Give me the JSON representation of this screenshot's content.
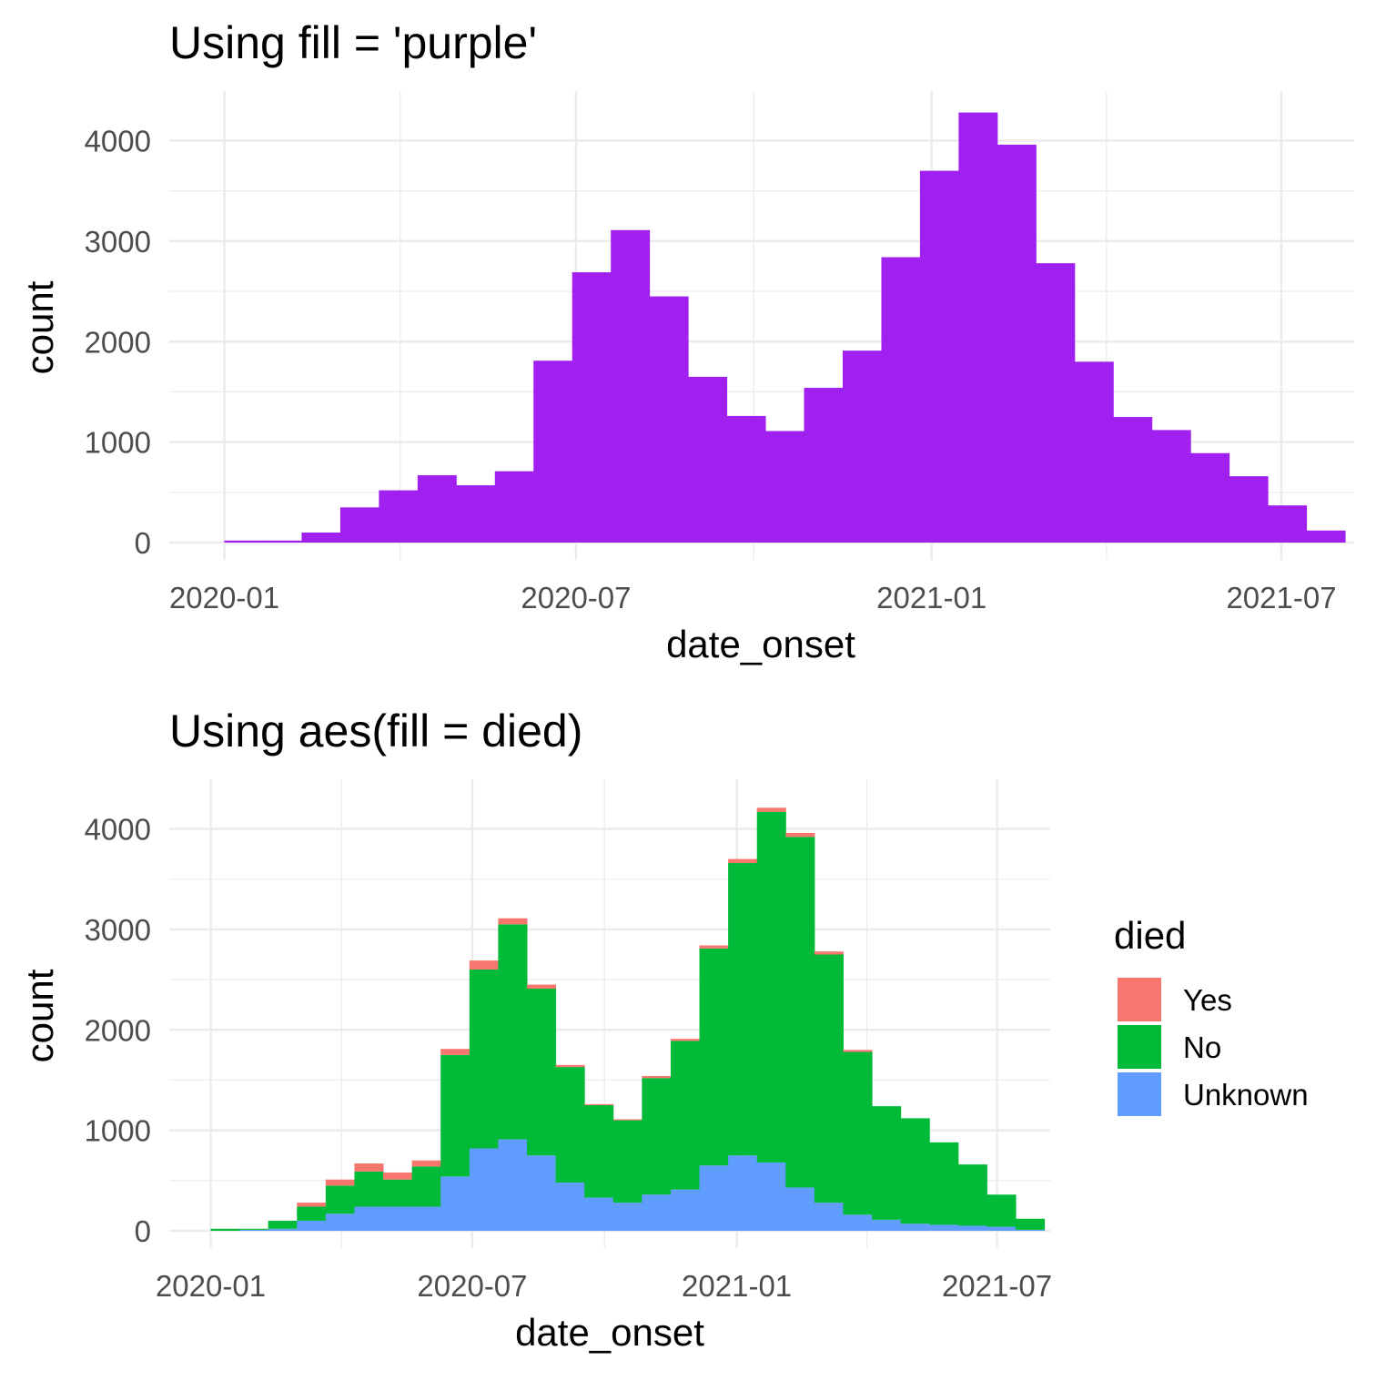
{
  "chart_data": [
    {
      "type": "bar",
      "subtype": "histogram",
      "title": "Using fill = 'purple'",
      "xlabel": "date_onset",
      "ylabel": "count",
      "fill_color": "#A020F0",
      "x_ticks": [
        "2020-01",
        "2020-07",
        "2021-01",
        "2021-07"
      ],
      "y_ticks": [
        0,
        1000,
        2000,
        3000,
        4000
      ],
      "ylim": [
        0,
        4300
      ],
      "bins": [
        {
          "start": "2020-01-01",
          "end": "2020-01-21",
          "count": 20
        },
        {
          "start": "2020-01-21",
          "end": "2020-02-10",
          "count": 20
        },
        {
          "start": "2020-02-10",
          "end": "2020-03-01",
          "count": 100
        },
        {
          "start": "2020-03-01",
          "end": "2020-03-21",
          "count": 350
        },
        {
          "start": "2020-03-21",
          "end": "2020-04-10",
          "count": 520
        },
        {
          "start": "2020-04-10",
          "end": "2020-04-30",
          "count": 670
        },
        {
          "start": "2020-04-30",
          "end": "2020-05-20",
          "count": 570
        },
        {
          "start": "2020-05-20",
          "end": "2020-06-09",
          "count": 710
        },
        {
          "start": "2020-06-09",
          "end": "2020-06-29",
          "count": 1810
        },
        {
          "start": "2020-06-29",
          "end": "2020-07-19",
          "count": 2690
        },
        {
          "start": "2020-07-19",
          "end": "2020-08-08",
          "count": 3110
        },
        {
          "start": "2020-08-08",
          "end": "2020-08-28",
          "count": 2450
        },
        {
          "start": "2020-08-28",
          "end": "2020-09-17",
          "count": 1650
        },
        {
          "start": "2020-09-17",
          "end": "2020-10-07",
          "count": 1260
        },
        {
          "start": "2020-10-07",
          "end": "2020-10-27",
          "count": 1110
        },
        {
          "start": "2020-10-27",
          "end": "2020-11-16",
          "count": 1540
        },
        {
          "start": "2020-11-16",
          "end": "2020-12-06",
          "count": 1910
        },
        {
          "start": "2020-12-06",
          "end": "2020-12-26",
          "count": 2840
        },
        {
          "start": "2020-12-26",
          "end": "2021-01-15",
          "count": 3700
        },
        {
          "start": "2021-01-15",
          "end": "2021-02-04",
          "count": 4280
        },
        {
          "start": "2021-02-04",
          "end": "2021-02-24",
          "count": 3960
        },
        {
          "start": "2021-02-24",
          "end": "2021-03-16",
          "count": 2780
        },
        {
          "start": "2021-03-16",
          "end": "2021-04-05",
          "count": 1800
        },
        {
          "start": "2021-04-05",
          "end": "2021-04-25",
          "count": 1250
        },
        {
          "start": "2021-04-25",
          "end": "2021-05-15",
          "count": 1120
        },
        {
          "start": "2021-05-15",
          "end": "2021-06-04",
          "count": 890
        },
        {
          "start": "2021-06-04",
          "end": "2021-06-24",
          "count": 660
        },
        {
          "start": "2021-06-24",
          "end": "2021-07-14",
          "count": 370
        },
        {
          "start": "2021-07-14",
          "end": "2021-08-03",
          "count": 120
        }
      ]
    },
    {
      "type": "bar",
      "subtype": "stacked-histogram",
      "title": "Using aes(fill = died)",
      "xlabel": "date_onset",
      "ylabel": "count",
      "x_ticks": [
        "2020-01",
        "2020-07",
        "2021-01",
        "2021-07"
      ],
      "y_ticks": [
        0,
        1000,
        2000,
        3000,
        4000
      ],
      "ylim": [
        0,
        4300
      ],
      "legend": {
        "title": "died",
        "position": "right"
      },
      "series": [
        {
          "name": "Yes",
          "color": "#F8766D",
          "values": [
            0,
            0,
            0,
            40,
            60,
            80,
            70,
            60,
            60,
            90,
            60,
            40,
            20,
            10,
            10,
            20,
            20,
            30,
            40,
            40,
            40,
            30,
            20,
            0,
            0,
            0,
            0,
            0,
            0
          ]
        },
        {
          "name": "No",
          "color": "#00BA38",
          "values": [
            20,
            10,
            80,
            140,
            280,
            350,
            270,
            400,
            1210,
            1780,
            2140,
            1660,
            1150,
            920,
            820,
            1160,
            1480,
            2160,
            2910,
            3490,
            3490,
            2470,
            1620,
            1130,
            1050,
            820,
            610,
            320,
            110
          ]
        },
        {
          "name": "Unknown",
          "color": "#619CFF",
          "values": [
            0,
            10,
            20,
            100,
            170,
            240,
            240,
            240,
            540,
            820,
            910,
            750,
            480,
            330,
            280,
            360,
            410,
            650,
            750,
            680,
            430,
            280,
            160,
            110,
            70,
            60,
            50,
            40,
            10
          ]
        }
      ],
      "bins_start": [
        "2020-01-01",
        "2020-01-21",
        "2020-02-10",
        "2020-03-01",
        "2020-03-21",
        "2020-04-10",
        "2020-04-30",
        "2020-05-20",
        "2020-06-09",
        "2020-06-29",
        "2020-07-19",
        "2020-08-08",
        "2020-08-28",
        "2020-09-17",
        "2020-10-07",
        "2020-10-27",
        "2020-11-16",
        "2020-12-06",
        "2020-12-26",
        "2021-01-15",
        "2021-02-04",
        "2021-02-24",
        "2021-03-16",
        "2021-04-05",
        "2021-04-25",
        "2021-05-15",
        "2021-06-04",
        "2021-06-24",
        "2021-07-14"
      ],
      "bin_days": 20
    }
  ]
}
